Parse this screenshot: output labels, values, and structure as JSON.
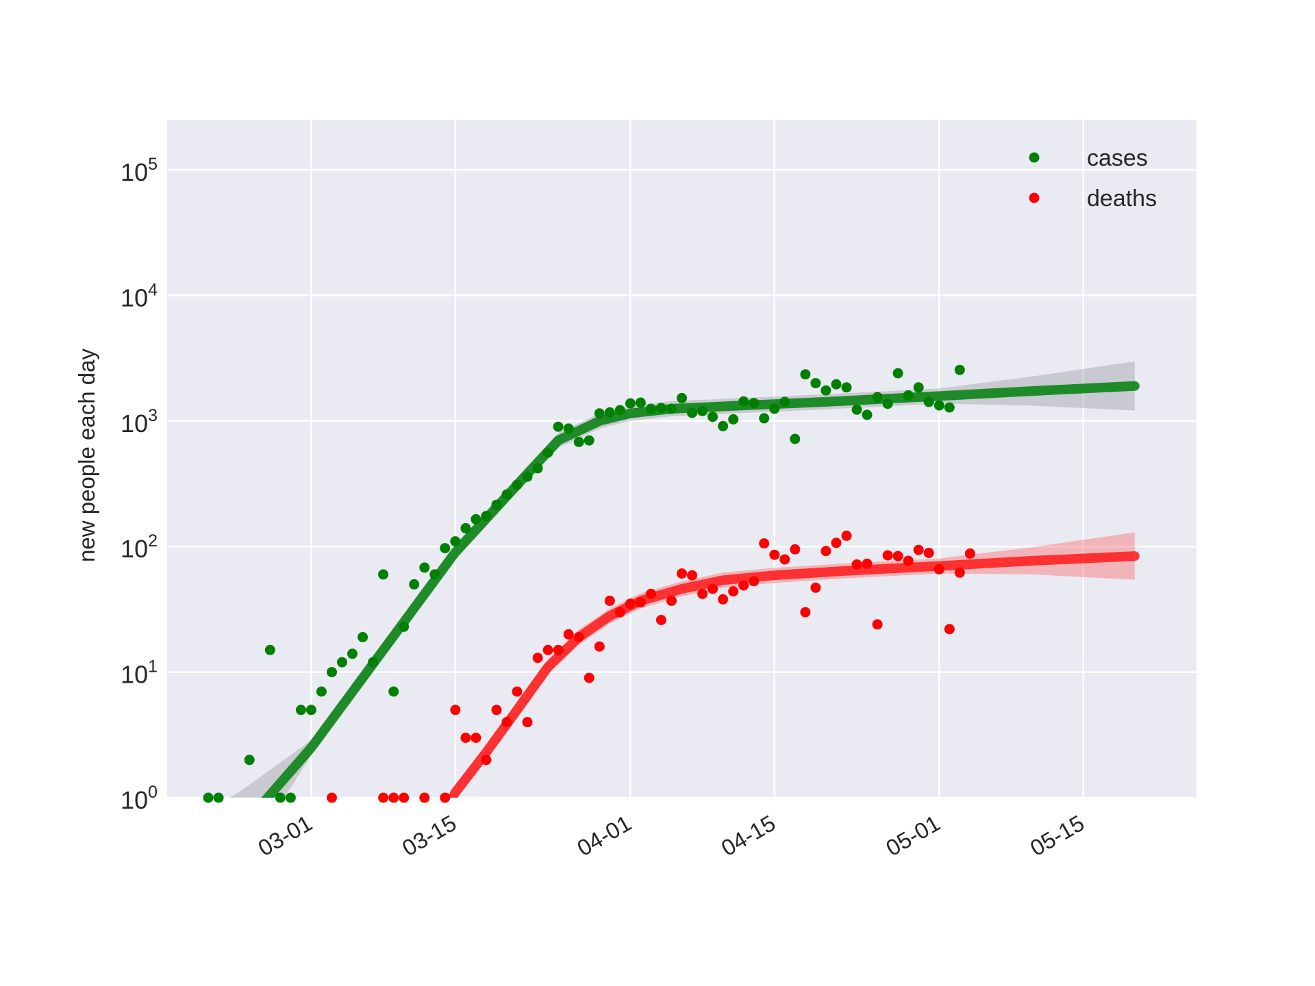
{
  "chart_data": {
    "type": "scatter",
    "y_scale": "log",
    "ylim": [
      1,
      250000
    ],
    "xlim": [
      "2020-02-16",
      "2020-05-26"
    ],
    "ylabel": "new people each day",
    "xlabel": "",
    "grid": true,
    "legend_position": "top-right",
    "x_tick_labels": [
      {
        "date": "2020-03-01",
        "label": "03-01"
      },
      {
        "date": "2020-03-15",
        "label": "03-15"
      },
      {
        "date": "2020-04-01",
        "label": "04-01"
      },
      {
        "date": "2020-04-15",
        "label": "04-15"
      },
      {
        "date": "2020-05-01",
        "label": "05-01"
      },
      {
        "date": "2020-05-15",
        "label": "05-15"
      }
    ],
    "y_tick_labels": [
      {
        "value": 1,
        "base": "10",
        "exp": "0"
      },
      {
        "value": 10,
        "base": "10",
        "exp": "1"
      },
      {
        "value": 100,
        "base": "10",
        "exp": "2"
      },
      {
        "value": 1000,
        "base": "10",
        "exp": "3"
      },
      {
        "value": 10000,
        "base": "10",
        "exp": "4"
      },
      {
        "value": 100000,
        "base": "10",
        "exp": "5"
      }
    ],
    "series": [
      {
        "name": "cases",
        "color": "#008000",
        "fit_color": "#00800a",
        "fit_band_color": "#8c8c99",
        "points": [
          [
            "2020-02-20",
            1
          ],
          [
            "2020-02-21",
            1
          ],
          [
            "2020-02-24",
            2
          ],
          [
            "2020-02-26",
            15
          ],
          [
            "2020-02-27",
            1
          ],
          [
            "2020-02-28",
            1
          ],
          [
            "2020-02-29",
            5
          ],
          [
            "2020-03-01",
            5
          ],
          [
            "2020-03-02",
            7
          ],
          [
            "2020-03-03",
            10
          ],
          [
            "2020-03-04",
            12
          ],
          [
            "2020-03-05",
            14
          ],
          [
            "2020-03-06",
            19
          ],
          [
            "2020-03-07",
            12
          ],
          [
            "2020-03-08",
            60
          ],
          [
            "2020-03-09",
            7
          ],
          [
            "2020-03-10",
            23
          ],
          [
            "2020-03-11",
            50
          ],
          [
            "2020-03-12",
            68
          ],
          [
            "2020-03-13",
            60
          ],
          [
            "2020-03-14",
            97
          ],
          [
            "2020-03-15",
            110
          ],
          [
            "2020-03-16",
            140
          ],
          [
            "2020-03-17",
            165
          ],
          [
            "2020-03-18",
            175
          ],
          [
            "2020-03-19",
            215
          ],
          [
            "2020-03-20",
            260
          ],
          [
            "2020-03-21",
            310
          ],
          [
            "2020-03-22",
            360
          ],
          [
            "2020-03-23",
            420
          ],
          [
            "2020-03-24",
            560
          ],
          [
            "2020-03-25",
            900
          ],
          [
            "2020-03-26",
            870
          ],
          [
            "2020-03-27",
            680
          ],
          [
            "2020-03-28",
            700
          ],
          [
            "2020-03-29",
            1150
          ],
          [
            "2020-03-30",
            1170
          ],
          [
            "2020-03-31",
            1220
          ],
          [
            "2020-04-01",
            1380
          ],
          [
            "2020-04-02",
            1400
          ],
          [
            "2020-04-03",
            1250
          ],
          [
            "2020-04-04",
            1270
          ],
          [
            "2020-04-05",
            1250
          ],
          [
            "2020-04-06",
            1520
          ],
          [
            "2020-04-07",
            1160
          ],
          [
            "2020-04-08",
            1200
          ],
          [
            "2020-04-09",
            1080
          ],
          [
            "2020-04-10",
            910
          ],
          [
            "2020-04-11",
            1030
          ],
          [
            "2020-04-12",
            1430
          ],
          [
            "2020-04-13",
            1390
          ],
          [
            "2020-04-14",
            1050
          ],
          [
            "2020-04-15",
            1250
          ],
          [
            "2020-04-16",
            1420
          ],
          [
            "2020-04-17",
            720
          ],
          [
            "2020-04-18",
            2350
          ],
          [
            "2020-04-19",
            2000
          ],
          [
            "2020-04-20",
            1750
          ],
          [
            "2020-04-21",
            1960
          ],
          [
            "2020-04-22",
            1850
          ],
          [
            "2020-04-23",
            1230
          ],
          [
            "2020-04-24",
            1120
          ],
          [
            "2020-04-25",
            1550
          ],
          [
            "2020-04-26",
            1370
          ],
          [
            "2020-04-27",
            2400
          ],
          [
            "2020-04-28",
            1600
          ],
          [
            "2020-04-29",
            1850
          ],
          [
            "2020-04-30",
            1420
          ],
          [
            "2020-05-01",
            1330
          ],
          [
            "2020-05-02",
            1280
          ],
          [
            "2020-05-03",
            2550
          ]
        ],
        "fit": [
          [
            "2020-02-16",
            0.15
          ],
          [
            "2020-02-23",
            0.55
          ],
          [
            "2020-03-01",
            2.5
          ],
          [
            "2020-03-08",
            15
          ],
          [
            "2020-03-15",
            90
          ],
          [
            "2020-03-22",
            380
          ],
          [
            "2020-03-25",
            700
          ],
          [
            "2020-03-29",
            1000
          ],
          [
            "2020-04-01",
            1150
          ],
          [
            "2020-04-05",
            1250
          ],
          [
            "2020-04-12",
            1330
          ],
          [
            "2020-04-20",
            1420
          ],
          [
            "2020-05-01",
            1580
          ],
          [
            "2020-05-10",
            1730
          ],
          [
            "2020-05-20",
            1900
          ]
        ]
      },
      {
        "name": "deaths",
        "color": "#ff0000",
        "fit_color": "#ff1a1a",
        "fit_band_color": "#ff5050",
        "points": [
          [
            "2020-03-03",
            1
          ],
          [
            "2020-03-08",
            1
          ],
          [
            "2020-03-09",
            1
          ],
          [
            "2020-03-10",
            1
          ],
          [
            "2020-03-12",
            1
          ],
          [
            "2020-03-14",
            1
          ],
          [
            "2020-03-15",
            5
          ],
          [
            "2020-03-16",
            3
          ],
          [
            "2020-03-17",
            3
          ],
          [
            "2020-03-18",
            2
          ],
          [
            "2020-03-19",
            5
          ],
          [
            "2020-03-20",
            4
          ],
          [
            "2020-03-21",
            7
          ],
          [
            "2020-03-22",
            4
          ],
          [
            "2020-03-23",
            13
          ],
          [
            "2020-03-24",
            15
          ],
          [
            "2020-03-25",
            15
          ],
          [
            "2020-03-26",
            20
          ],
          [
            "2020-03-27",
            19
          ],
          [
            "2020-03-28",
            9
          ],
          [
            "2020-03-29",
            16
          ],
          [
            "2020-03-30",
            37
          ],
          [
            "2020-03-31",
            30
          ],
          [
            "2020-04-01",
            35
          ],
          [
            "2020-04-02",
            36
          ],
          [
            "2020-04-03",
            42
          ],
          [
            "2020-04-04",
            26
          ],
          [
            "2020-04-05",
            37
          ],
          [
            "2020-04-06",
            61
          ],
          [
            "2020-04-07",
            59
          ],
          [
            "2020-04-08",
            42
          ],
          [
            "2020-04-09",
            46
          ],
          [
            "2020-04-10",
            38
          ],
          [
            "2020-04-11",
            44
          ],
          [
            "2020-04-12",
            49
          ],
          [
            "2020-04-13",
            53
          ],
          [
            "2020-04-14",
            106
          ],
          [
            "2020-04-15",
            86
          ],
          [
            "2020-04-16",
            79
          ],
          [
            "2020-04-17",
            95
          ],
          [
            "2020-04-18",
            30
          ],
          [
            "2020-04-19",
            47
          ],
          [
            "2020-04-20",
            92
          ],
          [
            "2020-04-21",
            107
          ],
          [
            "2020-04-22",
            122
          ],
          [
            "2020-04-23",
            72
          ],
          [
            "2020-04-24",
            73
          ],
          [
            "2020-04-25",
            24
          ],
          [
            "2020-04-26",
            85
          ],
          [
            "2020-04-27",
            84
          ],
          [
            "2020-04-28",
            77
          ],
          [
            "2020-04-29",
            94
          ],
          [
            "2020-04-30",
            89
          ],
          [
            "2020-05-01",
            66
          ],
          [
            "2020-05-02",
            22
          ],
          [
            "2020-05-03",
            62
          ],
          [
            "2020-05-04",
            88
          ]
        ],
        "fit": [
          [
            "2020-03-12",
            0.4
          ],
          [
            "2020-03-15",
            1.1
          ],
          [
            "2020-03-18",
            2.3
          ],
          [
            "2020-03-21",
            5
          ],
          [
            "2020-03-24",
            11
          ],
          [
            "2020-03-27",
            19
          ],
          [
            "2020-03-30",
            28
          ],
          [
            "2020-04-02",
            37
          ],
          [
            "2020-04-06",
            46
          ],
          [
            "2020-04-10",
            54
          ],
          [
            "2020-04-15",
            59
          ],
          [
            "2020-04-22",
            64
          ],
          [
            "2020-05-01",
            70
          ],
          [
            "2020-05-10",
            77
          ],
          [
            "2020-05-20",
            84
          ]
        ]
      }
    ]
  }
}
